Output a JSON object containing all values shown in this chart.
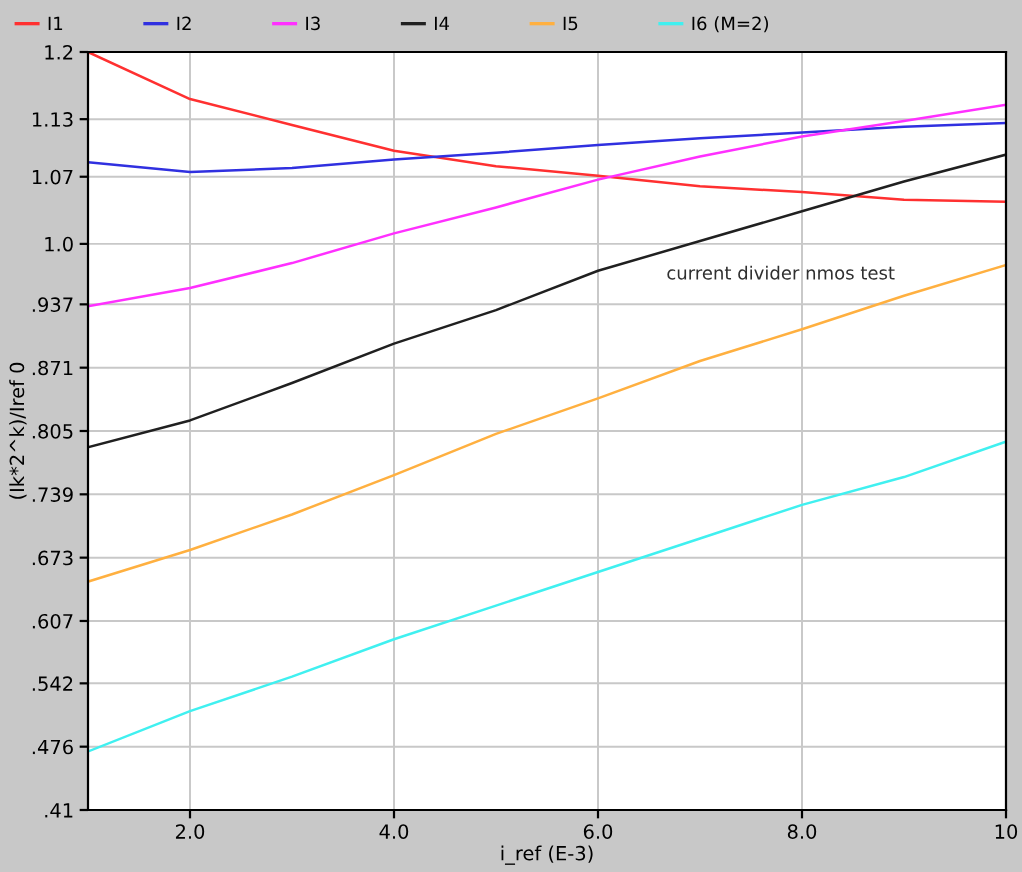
{
  "chart_data": {
    "type": "line",
    "xlabel": "i_ref (E-3)",
    "ylabel": "(Ik*2^k)/Iref 0",
    "x": [
      1,
      2,
      3,
      4,
      5,
      6,
      7,
      8,
      9,
      10
    ],
    "series": [
      {
        "name": "I1",
        "color": "#ff3030",
        "values": [
          1.2,
          1.151,
          1.124,
          1.097,
          1.081,
          1.071,
          1.06,
          1.054,
          1.046,
          1.044
        ]
      },
      {
        "name": "I2",
        "color": "#3030e0",
        "values": [
          1.085,
          1.075,
          1.079,
          1.088,
          1.095,
          1.103,
          1.11,
          1.116,
          1.122,
          1.126
        ]
      },
      {
        "name": "I3",
        "color": "#ff30ff",
        "values": [
          0.935,
          0.954,
          0.98,
          1.011,
          1.038,
          1.067,
          1.091,
          1.112,
          1.128,
          1.145
        ]
      },
      {
        "name": "I4",
        "color": "#202020",
        "values": [
          0.788,
          0.816,
          0.855,
          0.896,
          0.931,
          0.972,
          1.003,
          1.034,
          1.065,
          1.093
        ]
      },
      {
        "name": "I5",
        "color": "#ffb040",
        "values": [
          0.648,
          0.681,
          0.718,
          0.759,
          0.802,
          0.839,
          0.878,
          0.911,
          0.946,
          0.978
        ]
      },
      {
        "name": "I6 (M=2)",
        "color": "#40f0f0",
        "values": [
          0.471,
          0.513,
          0.549,
          0.588,
          0.623,
          0.658,
          0.693,
          0.728,
          0.757,
          0.794
        ]
      }
    ],
    "xlim": [
      1,
      10
    ],
    "ylim": [
      0.41,
      1.2
    ],
    "xticks": [
      {
        "value": 2,
        "label": "2.0"
      },
      {
        "value": 4,
        "label": "4.0"
      },
      {
        "value": 6,
        "label": "6.0"
      },
      {
        "value": 8,
        "label": "8.0"
      },
      10
    ],
    "yticks": [
      {
        "value": 0.41,
        "label": ".41"
      },
      {
        "value": 0.476,
        "label": ".476"
      },
      {
        "value": 0.542,
        "label": ".542"
      },
      {
        "value": 0.607,
        "label": ".607"
      },
      {
        "value": 0.673,
        "label": ".673"
      },
      {
        "value": 0.739,
        "label": ".739"
      },
      {
        "value": 0.805,
        "label": ".805"
      },
      {
        "value": 0.871,
        "label": ".871"
      },
      {
        "value": 0.937,
        "label": ".937"
      },
      {
        "value": 1.0,
        "label": "1.0"
      },
      {
        "value": 1.07,
        "label": "1.07"
      },
      {
        "value": 1.13,
        "label": "1.13"
      },
      {
        "value": 1.2,
        "label": "1.2"
      }
    ],
    "grid": true,
    "legend": "top",
    "marker": "none",
    "line_style": "solid",
    "annotations": [
      "current divider nmos test"
    ]
  }
}
